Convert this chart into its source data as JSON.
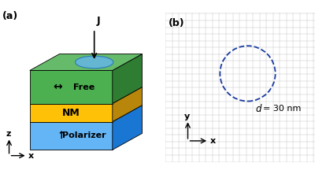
{
  "fig_width": 4.0,
  "fig_height": 2.21,
  "dpi": 100,
  "panel_a_label": "(a)",
  "panel_b_label": "(b)",
  "free_front": "#4caf50",
  "free_top": "#66bb6a",
  "free_right": "#2e7d32",
  "nm_front": "#ffc107",
  "nm_top": "#ffd54f",
  "nm_right": "#b8860b",
  "pol_front": "#64b5f6",
  "pol_top": "#90caf9",
  "pol_right": "#1976d2",
  "ellipse_face": "#64b5f6",
  "ellipse_edge": "#1565c0",
  "dashed_circle_color": "#1a3a9f",
  "grid_color": "#c0c0c0",
  "bg_color": "#cccccc",
  "layer_free_label": "Free",
  "layer_nm_label": "NM",
  "layer_pol_label": "Polarizer",
  "free_arrow": "↔",
  "pol_arrow": "↑",
  "current_label": "J",
  "x_label": "x",
  "y_label": "y",
  "z_label": "z"
}
